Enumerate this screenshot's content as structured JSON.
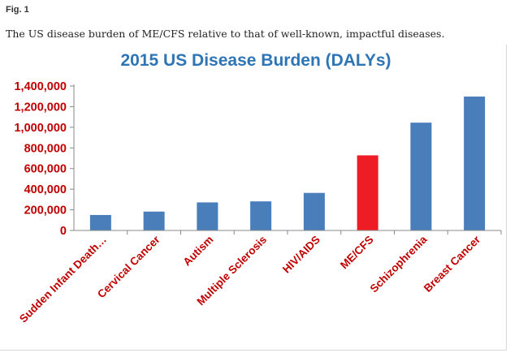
{
  "figure": {
    "label_prefix": "Fig.",
    "label_number": "1",
    "caption": "The US disease burden of ME/CFS relative to that of well-known, impactful diseases."
  },
  "colors": {
    "title": "#2e75b6",
    "axis_text": "#c00000",
    "bar": "#4a7ebb",
    "highlight": "#ee1c25",
    "axis_line": "#888888"
  },
  "chart_data": {
    "type": "bar",
    "title": "2015 US Disease Burden (DALYs)",
    "xlabel": "",
    "ylabel": "",
    "ylim": [
      0,
      1400000
    ],
    "yticks": [
      0,
      200000,
      400000,
      600000,
      800000,
      1000000,
      1200000,
      1400000
    ],
    "ytick_labels": [
      "0",
      "200,000",
      "400,000",
      "600,000",
      "800,000",
      "1,000,000",
      "1,200,000",
      "1,400,000"
    ],
    "categories": [
      "Sudden Infant Death…",
      "Cervical Cancer",
      "Autism",
      "Multiple Sclerosis",
      "HIV/AIDS",
      "ME/CFS",
      "Schizophrenia",
      "Breast Cancer"
    ],
    "values": [
      150000,
      183000,
      272000,
      282000,
      364000,
      728000,
      1045000,
      1298000
    ],
    "highlight_category": "ME/CFS",
    "grid": false
  }
}
